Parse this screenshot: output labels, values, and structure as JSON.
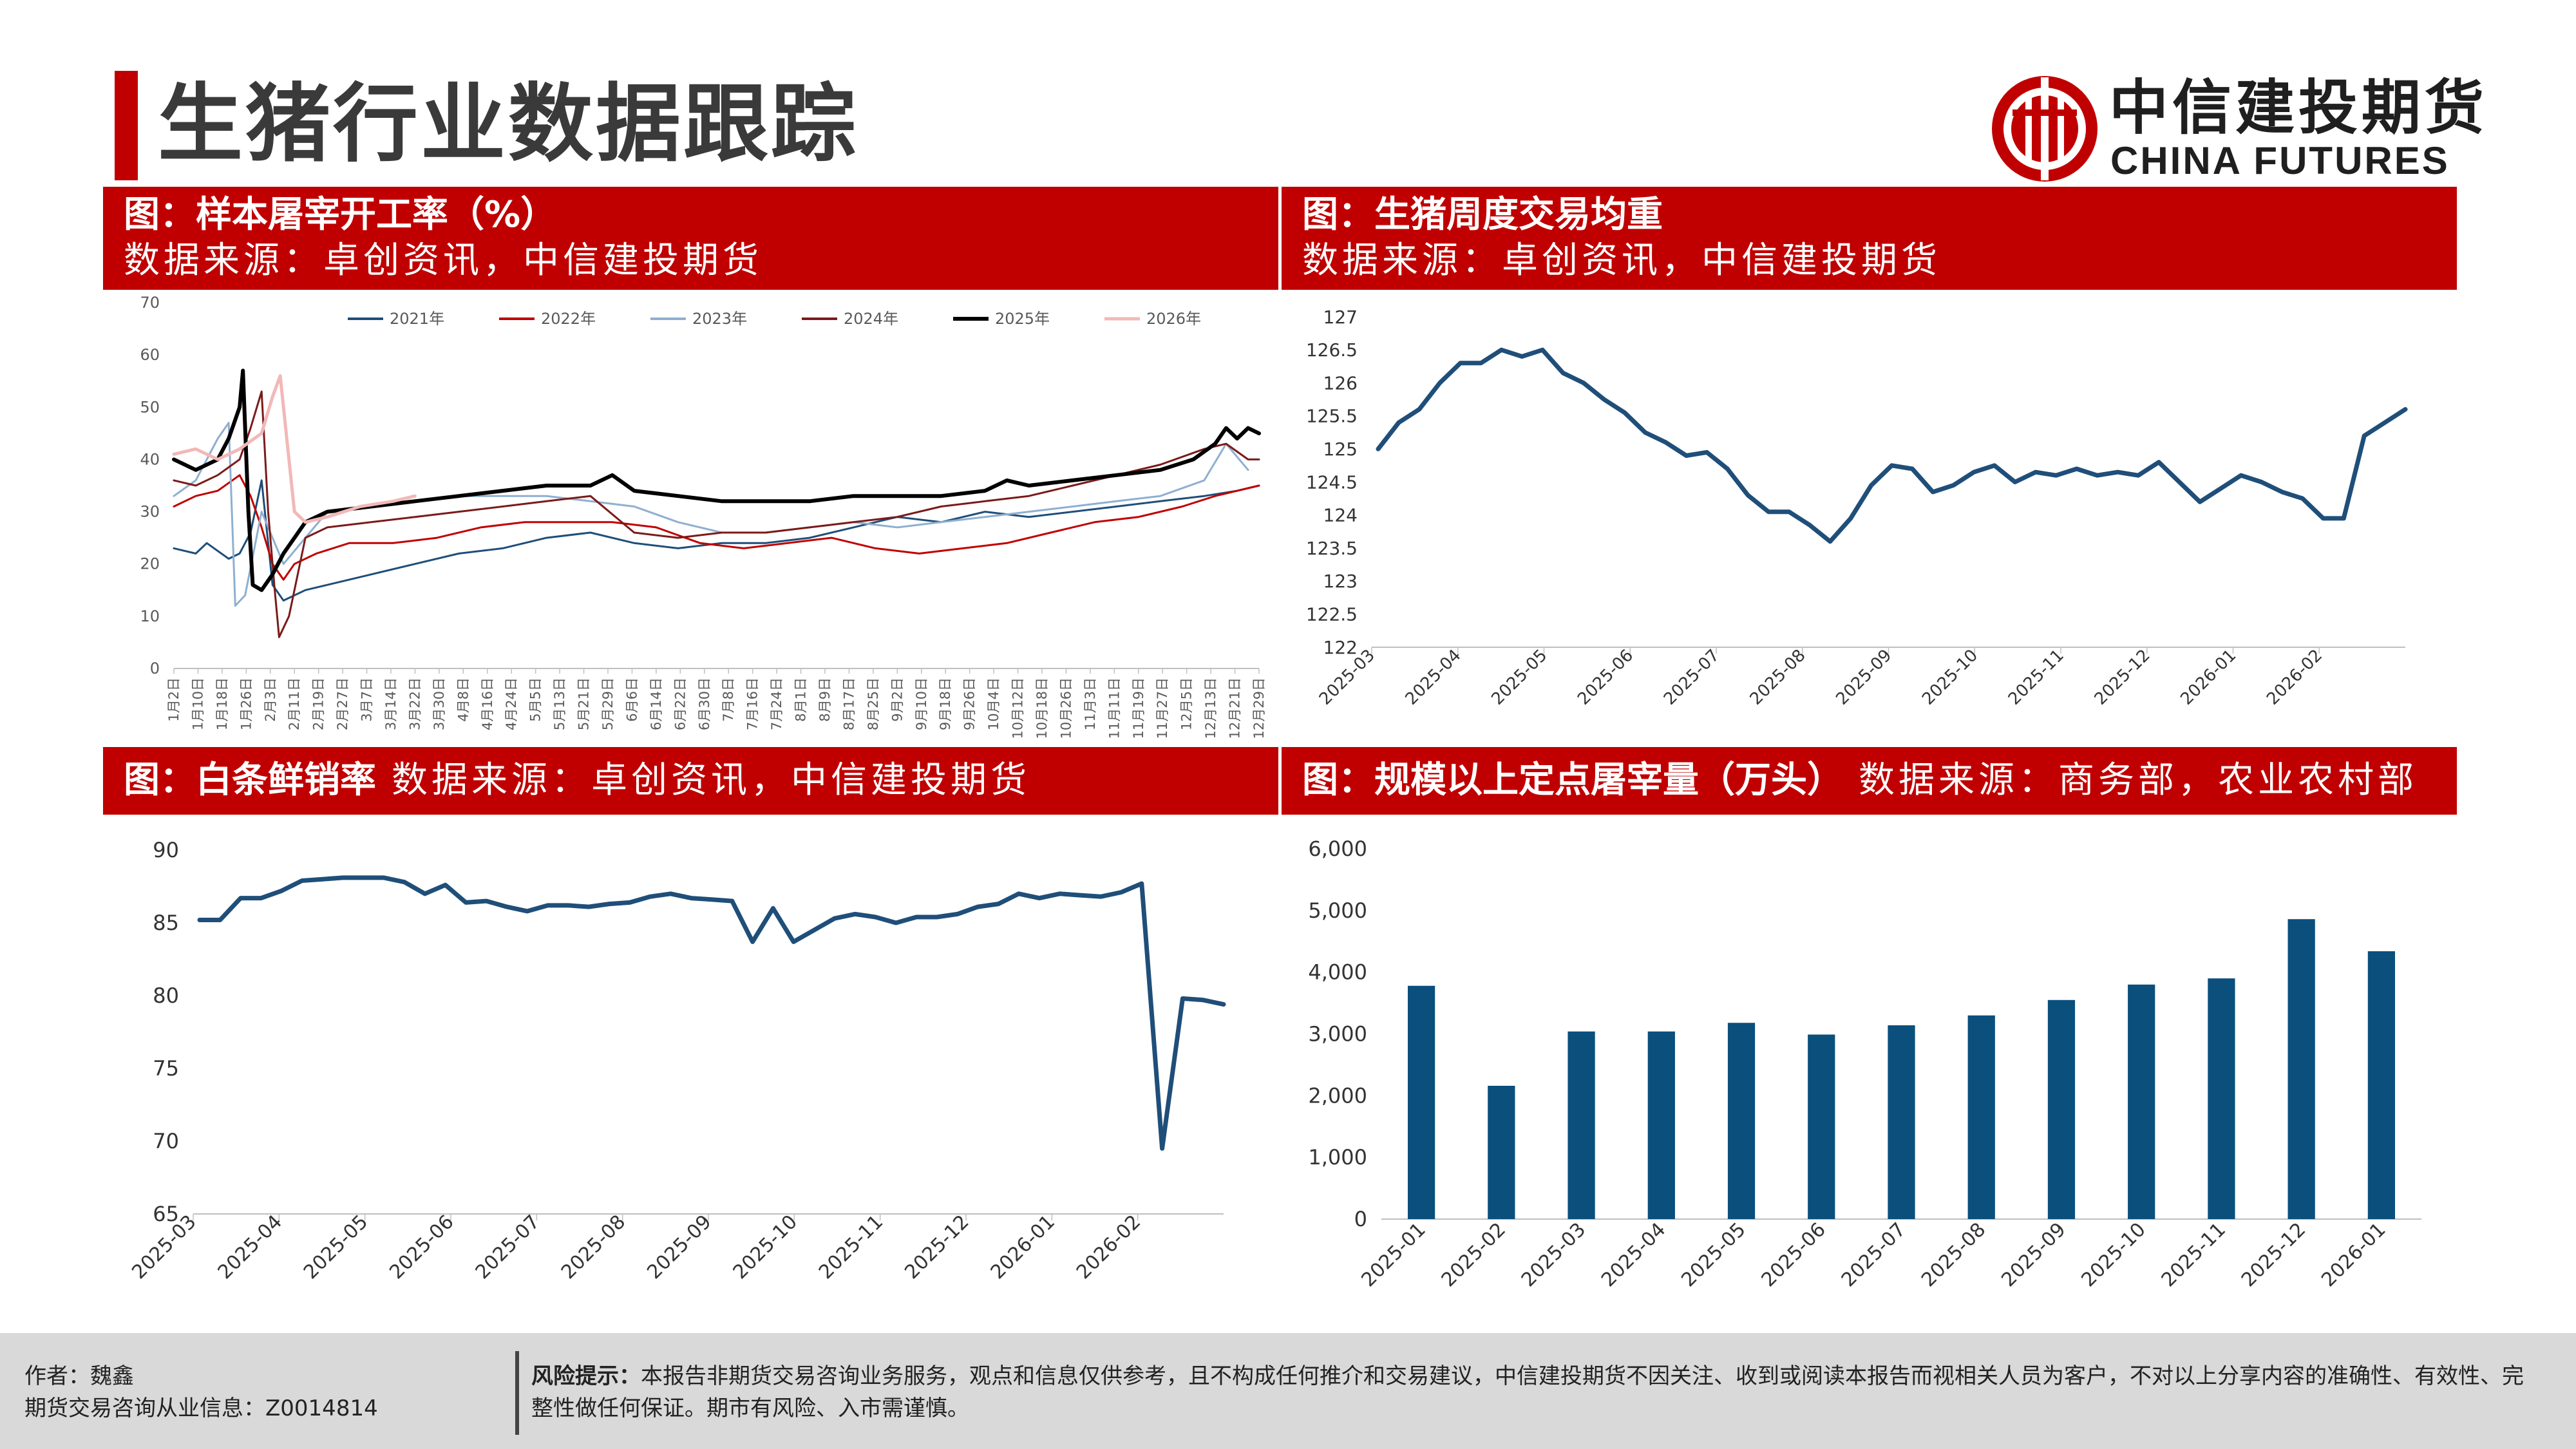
{
  "page": {
    "title": "生猪行业数据跟踪"
  },
  "logo": {
    "cn": "中信建投期货",
    "en": "CHINA FUTURES",
    "brand_color": "#c00000"
  },
  "panels": {
    "p1": {
      "title": "图：样本屠宰开工率（%）",
      "source": "数据来源：卓创资讯，中信建投期货"
    },
    "p2": {
      "title": "图：生猪周度交易均重",
      "source": "数据来源：卓创资讯，中信建投期货"
    },
    "p3": {
      "title": "图：白条鲜销率",
      "source": "数据来源：卓创资讯，中信建投期货"
    },
    "p4": {
      "title": "图：规模以上定点屠宰量（万头）",
      "source": "数据来源：商务部，农业农村部"
    }
  },
  "footer": {
    "author": "作者：魏鑫",
    "license": "期货交易咨询从业信息：Z0014814",
    "risk_label": "风险提示：",
    "risk_text": "本报告非期货交易咨询业务服务，观点和信息仅供参考，且不构成任何推介和交易建议，中信建投期货不因关注、收到或阅读本报告而视相关人员为客户，不对以上分享内容的准确性、有效性、完整性做任何保证。期市有风险、入市需谨慎。"
  },
  "chart_data": [
    {
      "type": "line",
      "title": "图：样本屠宰开工率（%）",
      "ylim": [
        0,
        70
      ],
      "yticks": [
        0,
        10,
        20,
        30,
        40,
        50,
        60,
        70
      ],
      "x_ticks": [
        "1月2日",
        "1月10日",
        "1月18日",
        "1月26日",
        "2月3日",
        "2月11日",
        "2月19日",
        "2月27日",
        "3月7日",
        "3月14日",
        "3月22日",
        "3月30日",
        "4月8日",
        "4月16日",
        "4月24日",
        "5月5日",
        "5月13日",
        "5月21日",
        "5月29日",
        "6月6日",
        "6月14日",
        "6月22日",
        "6月30日",
        "7月8日",
        "7月16日",
        "7月24日",
        "8月1日",
        "8月9日",
        "8月17日",
        "8月25日",
        "9月2日",
        "9月10日",
        "9月18日",
        "9月26日",
        "10月4日",
        "10月12日",
        "10月18日",
        "10月26日",
        "11月3日",
        "11月11日",
        "11月19日",
        "11月27日",
        "12月5日",
        "12月13日",
        "12月21日",
        "12月29日"
      ],
      "legend_position": "top",
      "series": [
        {
          "name": "2021年",
          "color": "#1f4e79",
          "width": 3,
          "points": [
            [
              0,
              23
            ],
            [
              2,
              22
            ],
            [
              3,
              24
            ],
            [
              5,
              21
            ],
            [
              6,
              22
            ],
            [
              7,
              26
            ],
            [
              8,
              36
            ],
            [
              9,
              16
            ],
            [
              10,
              13
            ],
            [
              12,
              15
            ],
            [
              14,
              16
            ],
            [
              18,
              18
            ],
            [
              22,
              20
            ],
            [
              26,
              22
            ],
            [
              30,
              23
            ],
            [
              34,
              25
            ],
            [
              38,
              26
            ],
            [
              42,
              24
            ],
            [
              46,
              23
            ],
            [
              50,
              24
            ],
            [
              54,
              24
            ],
            [
              58,
              25
            ],
            [
              62,
              27
            ],
            [
              66,
              29
            ],
            [
              70,
              28
            ],
            [
              74,
              30
            ],
            [
              78,
              29
            ],
            [
              82,
              30
            ],
            [
              86,
              31
            ],
            [
              90,
              32
            ],
            [
              94,
              33
            ],
            [
              97,
              34
            ],
            [
              99,
              35
            ]
          ]
        },
        {
          "name": "2022年",
          "color": "#c00000",
          "width": 3,
          "points": [
            [
              0,
              31
            ],
            [
              2,
              33
            ],
            [
              4,
              34
            ],
            [
              6,
              37
            ],
            [
              7,
              33
            ],
            [
              8,
              27
            ],
            [
              9,
              20
            ],
            [
              10,
              17
            ],
            [
              11,
              20
            ],
            [
              13,
              22
            ],
            [
              16,
              24
            ],
            [
              20,
              24
            ],
            [
              24,
              25
            ],
            [
              28,
              27
            ],
            [
              32,
              28
            ],
            [
              36,
              28
            ],
            [
              40,
              28
            ],
            [
              44,
              27
            ],
            [
              48,
              24
            ],
            [
              52,
              23
            ],
            [
              56,
              24
            ],
            [
              60,
              25
            ],
            [
              64,
              23
            ],
            [
              68,
              22
            ],
            [
              72,
              23
            ],
            [
              76,
              24
            ],
            [
              80,
              26
            ],
            [
              84,
              28
            ],
            [
              88,
              29
            ],
            [
              92,
              31
            ],
            [
              95,
              33
            ],
            [
              97,
              34
            ],
            [
              99,
              35
            ]
          ]
        },
        {
          "name": "2023年",
          "color": "#8fafd0",
          "width": 3,
          "points": [
            [
              0,
              33
            ],
            [
              2,
              36
            ],
            [
              4,
              44
            ],
            [
              5,
              47
            ],
            [
              5.6,
              12
            ],
            [
              6.5,
              14
            ],
            [
              8,
              30
            ],
            [
              10,
              20
            ],
            [
              12,
              25
            ],
            [
              14,
              30
            ],
            [
              18,
              31
            ],
            [
              22,
              32
            ],
            [
              26,
              33
            ],
            [
              30,
              33
            ],
            [
              34,
              33
            ],
            [
              38,
              32
            ],
            [
              42,
              31
            ],
            [
              46,
              28
            ],
            [
              50,
              26
            ],
            [
              54,
              26
            ],
            [
              58,
              27
            ],
            [
              62,
              28
            ],
            [
              66,
              27
            ],
            [
              70,
              28
            ],
            [
              74,
              29
            ],
            [
              78,
              30
            ],
            [
              82,
              31
            ],
            [
              86,
              32
            ],
            [
              90,
              33
            ],
            [
              94,
              36
            ],
            [
              96,
              43
            ],
            [
              98,
              38
            ]
          ]
        },
        {
          "name": "2024年",
          "color": "#7b1a1a",
          "width": 3,
          "points": [
            [
              0,
              36
            ],
            [
              2,
              35
            ],
            [
              4,
              37
            ],
            [
              6,
              40
            ],
            [
              7,
              46
            ],
            [
              8,
              53
            ],
            [
              8.6,
              30
            ],
            [
              9.2,
              15
            ],
            [
              9.6,
              6
            ],
            [
              10.5,
              10
            ],
            [
              12,
              25
            ],
            [
              14,
              27
            ],
            [
              18,
              28
            ],
            [
              22,
              29
            ],
            [
              26,
              30
            ],
            [
              30,
              31
            ],
            [
              34,
              32
            ],
            [
              38,
              33
            ],
            [
              42,
              26
            ],
            [
              46,
              25
            ],
            [
              50,
              26
            ],
            [
              54,
              26
            ],
            [
              58,
              27
            ],
            [
              62,
              28
            ],
            [
              66,
              29
            ],
            [
              70,
              31
            ],
            [
              74,
              32
            ],
            [
              78,
              33
            ],
            [
              82,
              35
            ],
            [
              86,
              37
            ],
            [
              90,
              39
            ],
            [
              94,
              42
            ],
            [
              96,
              43
            ],
            [
              98,
              40
            ],
            [
              99,
              40
            ]
          ]
        },
        {
          "name": "2025年",
          "color": "#000000",
          "width": 6,
          "points": [
            [
              0,
              40
            ],
            [
              2,
              38
            ],
            [
              4,
              40
            ],
            [
              5,
              44
            ],
            [
              6,
              50
            ],
            [
              6.3,
              57
            ],
            [
              6.8,
              30
            ],
            [
              7.2,
              16
            ],
            [
              8,
              15
            ],
            [
              9,
              18
            ],
            [
              10,
              22
            ],
            [
              12,
              28
            ],
            [
              14,
              30
            ],
            [
              18,
              31
            ],
            [
              22,
              32
            ],
            [
              26,
              33
            ],
            [
              30,
              34
            ],
            [
              34,
              35
            ],
            [
              38,
              35
            ],
            [
              40,
              37
            ],
            [
              42,
              34
            ],
            [
              46,
              33
            ],
            [
              50,
              32
            ],
            [
              54,
              32
            ],
            [
              58,
              32
            ],
            [
              62,
              33
            ],
            [
              66,
              33
            ],
            [
              70,
              33
            ],
            [
              74,
              34
            ],
            [
              76,
              36
            ],
            [
              78,
              35
            ],
            [
              82,
              36
            ],
            [
              86,
              37
            ],
            [
              90,
              38
            ],
            [
              93,
              40
            ],
            [
              95,
              43
            ],
            [
              96,
              46
            ],
            [
              97,
              44
            ],
            [
              98,
              46
            ],
            [
              99,
              45
            ]
          ]
        },
        {
          "name": "2026年",
          "color": "#f2b8b8",
          "width": 5,
          "points": [
            [
              0,
              41
            ],
            [
              2,
              42
            ],
            [
              4,
              40
            ],
            [
              6,
              42
            ],
            [
              8,
              45
            ],
            [
              9,
              52
            ],
            [
              9.7,
              56
            ],
            [
              10.4,
              42
            ],
            [
              11,
              30
            ],
            [
              12,
              28
            ],
            [
              14,
              29
            ],
            [
              17,
              31
            ],
            [
              20,
              32
            ],
            [
              22,
              33
            ]
          ]
        }
      ]
    },
    {
      "type": "line",
      "title": "图：生猪周度交易均重",
      "ylim": [
        122,
        127
      ],
      "yticks": [
        122,
        122.5,
        123,
        123.5,
        124,
        124.5,
        125,
        125.5,
        126,
        126.5,
        127
      ],
      "x_labels": [
        "2025-03",
        "2025-04",
        "2025-05",
        "2025-06",
        "2025-07",
        "2025-08",
        "2025-09",
        "2025-10",
        "2025-11",
        "2025-12",
        "2026-01",
        "2026-02"
      ],
      "series": [
        {
          "name": "",
          "color": "#1f4e79",
          "values": [
            125.0,
            125.4,
            125.6,
            126.0,
            126.3,
            126.3,
            126.5,
            126.4,
            126.5,
            126.15,
            126.0,
            125.75,
            125.55,
            125.25,
            125.1,
            124.9,
            124.95,
            124.7,
            124.3,
            124.05,
            124.05,
            123.85,
            123.6,
            123.95,
            124.45,
            124.75,
            124.7,
            124.35,
            124.45,
            124.65,
            124.75,
            124.5,
            124.65,
            124.6,
            124.7,
            124.6,
            124.65,
            124.6,
            124.8,
            124.5,
            124.2,
            124.4,
            124.6,
            124.5,
            124.35,
            124.25,
            123.95,
            123.95,
            125.2,
            125.4,
            125.6
          ]
        }
      ]
    },
    {
      "type": "line",
      "title": "图：白条鲜销率",
      "ylim": [
        65,
        90
      ],
      "yticks": [
        65,
        70,
        75,
        80,
        85,
        90
      ],
      "x_labels": [
        "2025-03",
        "2025-04",
        "2025-05",
        "2025-06",
        "2025-07",
        "2025-08",
        "2025-09",
        "2025-10",
        "2025-11",
        "2025-12",
        "2026-01",
        "2026-02"
      ],
      "series": [
        {
          "name": "",
          "color": "#1f4e79",
          "values": [
            85.2,
            85.2,
            86.7,
            86.7,
            87.2,
            87.9,
            88.0,
            88.1,
            88.1,
            88.1,
            87.8,
            87.0,
            87.6,
            86.4,
            86.5,
            86.1,
            85.8,
            86.2,
            86.2,
            86.1,
            86.3,
            86.4,
            86.8,
            87.0,
            86.7,
            86.6,
            86.5,
            83.7,
            86.0,
            83.7,
            84.5,
            85.3,
            85.6,
            85.4,
            85.0,
            85.4,
            85.4,
            85.6,
            86.1,
            86.3,
            87.0,
            86.7,
            87.0,
            86.9,
            86.8,
            87.1,
            87.7,
            69.5,
            79.8,
            79.7,
            79.4
          ]
        }
      ]
    },
    {
      "type": "bar",
      "title": "图：规模以上定点屠宰量（万头）",
      "ylim": [
        0,
        6000
      ],
      "yticks": [
        0,
        1000,
        2000,
        3000,
        4000,
        5000,
        6000
      ],
      "ytick_labels": [
        "0",
        "1,000",
        "2,000",
        "3,000",
        "4,000",
        "5,000",
        "6,000"
      ],
      "categories": [
        "2025-01",
        "2025-02",
        "2025-03",
        "2025-04",
        "2025-05",
        "2025-06",
        "2025-07",
        "2025-08",
        "2025-09",
        "2025-10",
        "2025-11",
        "2025-12",
        "2026-01"
      ],
      "series": [
        {
          "name": "",
          "color": "#0b4f7c",
          "values": [
            3780,
            2160,
            3040,
            3040,
            3180,
            2990,
            3140,
            3300,
            3550,
            3800,
            3900,
            4860,
            4340
          ]
        }
      ]
    }
  ]
}
